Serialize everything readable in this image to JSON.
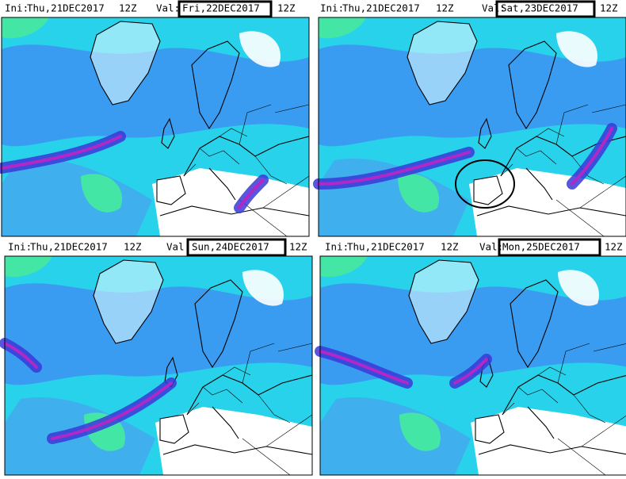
{
  "panels": [
    {
      "ini_label": "Ini:",
      "ini": "Thu,21DEC2017",
      "ini_hour": "12Z",
      "val_label": "Val:",
      "val": "Fri,22DEC2017",
      "val_hour": "12Z"
    },
    {
      "ini_label": "Ini:",
      "ini": "Thu,21DEC2017",
      "ini_hour": "12Z",
      "val_label": "Val:",
      "val": "Sat,23DEC2017",
      "val_hour": "12Z"
    },
    {
      "ini_label": "Ini:",
      "ini": "Thu,21DEC2017",
      "ini_hour": "12Z",
      "val_label": "Val:",
      "val": "Sun,24DEC2017",
      "val_hour": "12Z"
    },
    {
      "ini_label": "Ini:",
      "ini": "Thu,21DEC2017",
      "ini_hour": "12Z",
      "val_label": "Val:",
      "val": "Mon,25DEC2017",
      "val_hour": "12Z"
    }
  ]
}
